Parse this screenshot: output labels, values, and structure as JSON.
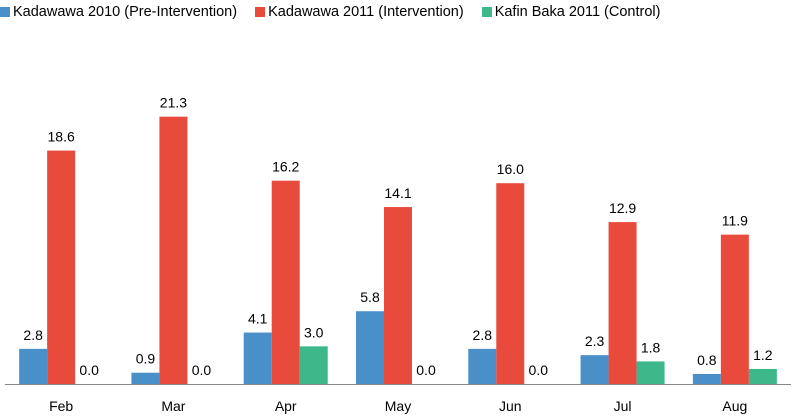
{
  "chart_data": {
    "type": "bar",
    "categories": [
      "Feb",
      "Mar",
      "Apr",
      "May",
      "Jun",
      "Jul",
      "Aug"
    ],
    "series": [
      {
        "name": "Kadawawa 2010 (Pre-Intervention)",
        "color": "#4a90c8",
        "values": [
          2.8,
          0.9,
          4.1,
          5.8,
          2.8,
          2.3,
          0.8
        ],
        "labels": [
          "2.8",
          "0.9",
          "4.1",
          "5.8",
          "2.8",
          "2.3",
          "0.8"
        ]
      },
      {
        "name": "Kadawawa 2011 (Intervention)",
        "color": "#e84a3c",
        "values": [
          18.6,
          21.3,
          16.2,
          14.1,
          16.0,
          12.9,
          11.9
        ],
        "labels": [
          "18.6",
          "21.3",
          "16.2",
          "14.1",
          "16.0",
          "12.9",
          "11.9"
        ]
      },
      {
        "name": "Kafin Baka 2011 (Control)",
        "color": "#3db88a",
        "values": [
          0.0,
          0.0,
          3.0,
          0.0,
          0.0,
          1.8,
          1.2
        ],
        "labels": [
          "0.0",
          "0.0",
          "3.0",
          "0.0",
          "0.0",
          "1.8",
          "1.2"
        ]
      }
    ],
    "ylim": [
      0,
      22
    ],
    "legend_position": "top",
    "grid": false
  }
}
